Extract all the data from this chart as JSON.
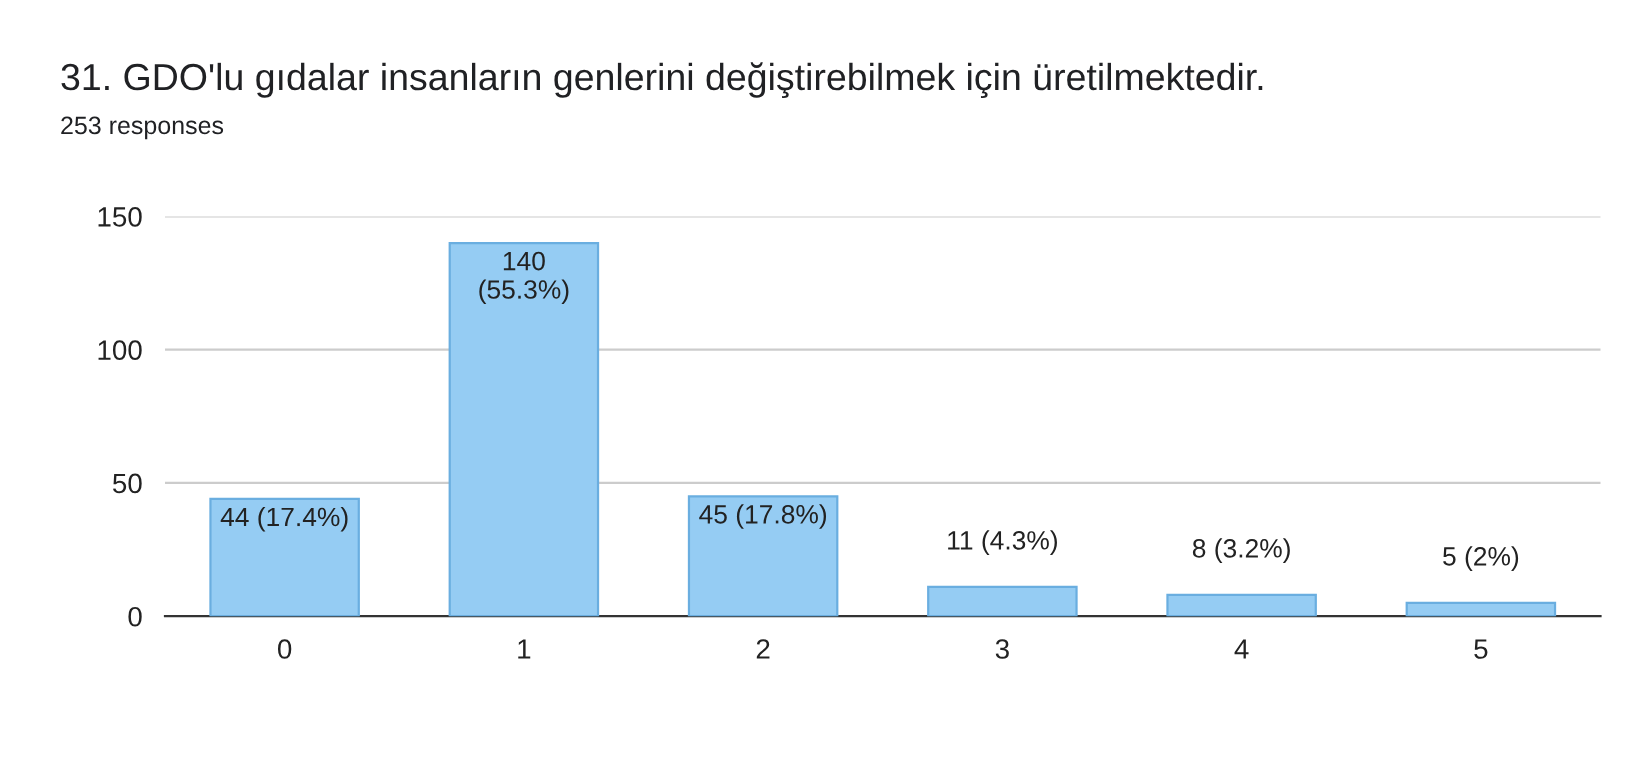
{
  "chart_data": {
    "type": "bar",
    "title": "31. GDO'lu gıdalar insanların genlerini değiştirebilmek için üretilmektedir.",
    "subtitle": "253 responses",
    "categories": [
      "0",
      "1",
      "2",
      "3",
      "4",
      "5"
    ],
    "values": [
      44,
      140,
      45,
      11,
      8,
      5
    ],
    "value_labels": [
      "44 (17.4%)",
      "140\n(55.3%)",
      "45 (17.8%)",
      "11 (4.3%)",
      "8 (3.2%)",
      "5 (2%)"
    ],
    "color": "#95ccf3",
    "ylim": [
      0,
      150
    ],
    "yticks": [
      0,
      50,
      100,
      150
    ],
    "grid": "y",
    "legend": false
  }
}
